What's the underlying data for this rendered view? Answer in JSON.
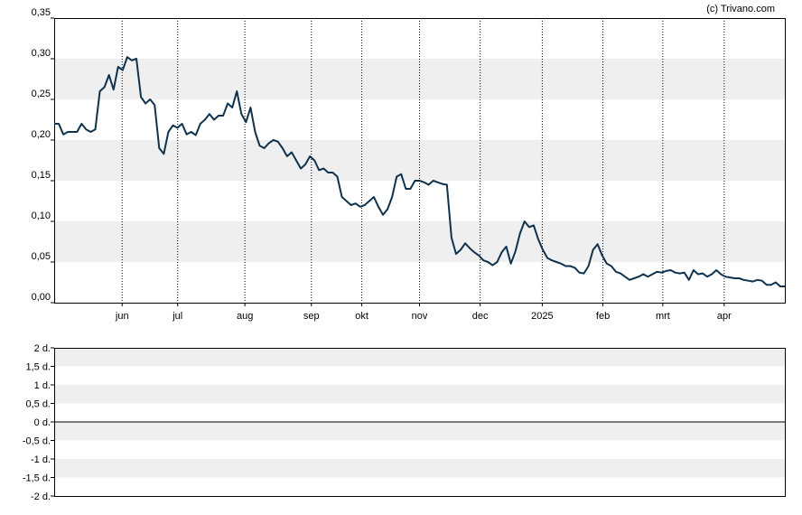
{
  "credit": "(c) Trivano.com",
  "chart_data": [
    {
      "type": "line",
      "ylim": [
        0,
        0.35
      ],
      "y_ticks": [
        "0,00",
        "0,05",
        "0,10",
        "0,15",
        "0,20",
        "0,25",
        "0,30",
        "0,35"
      ],
      "y_tick_values": [
        0,
        0.05,
        0.1,
        0.15,
        0.2,
        0.25,
        0.3,
        0.35
      ],
      "x_ticks": [
        "jun",
        "jul",
        "aug",
        "sep",
        "okt",
        "nov",
        "dec",
        "2025",
        "feb",
        "mrt",
        "apr"
      ],
      "x_tick_positions": [
        0.093,
        0.169,
        0.261,
        0.352,
        0.421,
        0.5,
        0.583,
        0.668,
        0.751,
        0.833,
        0.917
      ],
      "grid": "alternating bands, dotted vertical lines",
      "line_color": "#0d3350",
      "series": [
        {
          "values": [
            0.22,
            0.22,
            0.207,
            0.21,
            0.21,
            0.21,
            0.22,
            0.213,
            0.21,
            0.213,
            0.26,
            0.265,
            0.28,
            0.262,
            0.29,
            0.286,
            0.302,
            0.298,
            0.3,
            0.253,
            0.245,
            0.25,
            0.243,
            0.19,
            0.183,
            0.21,
            0.218,
            0.215,
            0.22,
            0.207,
            0.21,
            0.206,
            0.22,
            0.225,
            0.232,
            0.225,
            0.23,
            0.23,
            0.245,
            0.24,
            0.26,
            0.232,
            0.222,
            0.24,
            0.21,
            0.193,
            0.19,
            0.196,
            0.2,
            0.198,
            0.19,
            0.18,
            0.185,
            0.175,
            0.165,
            0.17,
            0.18,
            0.175,
            0.163,
            0.165,
            0.16,
            0.16,
            0.155,
            0.13,
            0.125,
            0.12,
            0.122,
            0.118,
            0.12,
            0.125,
            0.13,
            0.118,
            0.108,
            0.115,
            0.13,
            0.155,
            0.158,
            0.14,
            0.14,
            0.15,
            0.15,
            0.148,
            0.145,
            0.15,
            0.148,
            0.146,
            0.145,
            0.08,
            0.06,
            0.065,
            0.073,
            0.067,
            0.062,
            0.058,
            0.052,
            0.05,
            0.046,
            0.05,
            0.062,
            0.069,
            0.048,
            0.063,
            0.085,
            0.1,
            0.093,
            0.095,
            0.078,
            0.065,
            0.055,
            0.052,
            0.05,
            0.048,
            0.045,
            0.045,
            0.043,
            0.037,
            0.036,
            0.045,
            0.065,
            0.072,
            0.058,
            0.048,
            0.045,
            0.038,
            0.036,
            0.032,
            0.028,
            0.03,
            0.032,
            0.035,
            0.032,
            0.035,
            0.038,
            0.037,
            0.039,
            0.04,
            0.037,
            0.036,
            0.037,
            0.028,
            0.04,
            0.035,
            0.036,
            0.032,
            0.035,
            0.04,
            0.035,
            0.032,
            0.031,
            0.03,
            0.03,
            0.028,
            0.027,
            0.026,
            0.028,
            0.027,
            0.022,
            0.022,
            0.025,
            0.02,
            0.02
          ]
        }
      ]
    },
    {
      "type": "line",
      "ylim": [
        -2,
        2
      ],
      "y_ticks": [
        "2 d.",
        "1,5 d.",
        "1 d.",
        "0,5 d.",
        "0 d.",
        "-0,5 d.",
        "-1 d.",
        "-1,5 d.",
        "-2 d."
      ],
      "y_tick_values": [
        2,
        1.5,
        1,
        0.5,
        0,
        -0.5,
        -1,
        -1.5,
        -2
      ],
      "zero_line": 0,
      "series": []
    }
  ]
}
